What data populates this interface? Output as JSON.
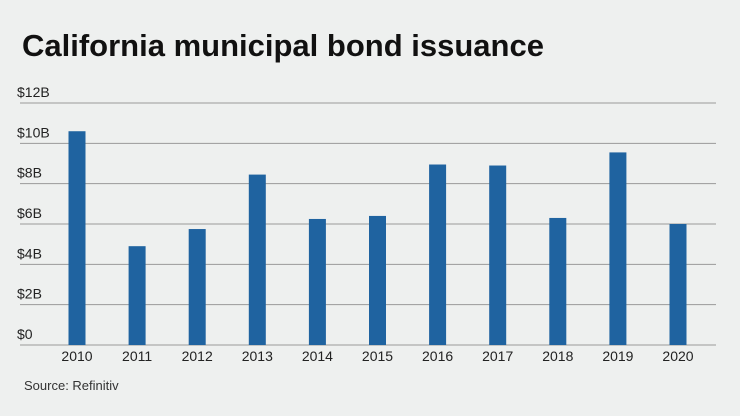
{
  "chart_data": {
    "type": "bar",
    "title": "California municipal bond issuance",
    "source": "Source: Refinitiv",
    "categories": [
      "2010",
      "2011",
      "2012",
      "2013",
      "2014",
      "2015",
      "2016",
      "2017",
      "2018",
      "2019",
      "2020"
    ],
    "values": [
      10.6,
      4.9,
      5.75,
      8.45,
      6.25,
      6.4,
      8.95,
      8.9,
      6.3,
      9.55,
      6.0
    ],
    "unit": "B",
    "ylim": [
      0,
      12
    ],
    "yticks": [
      0,
      2,
      4,
      6,
      8,
      10,
      12
    ],
    "ytick_labels": [
      "$0",
      "$2B",
      "$4B",
      "$6B",
      "$8B",
      "$10B",
      "$12B"
    ],
    "grid": true,
    "bar_color": "#1f63a0",
    "grid_color": "#9a9a9a"
  }
}
